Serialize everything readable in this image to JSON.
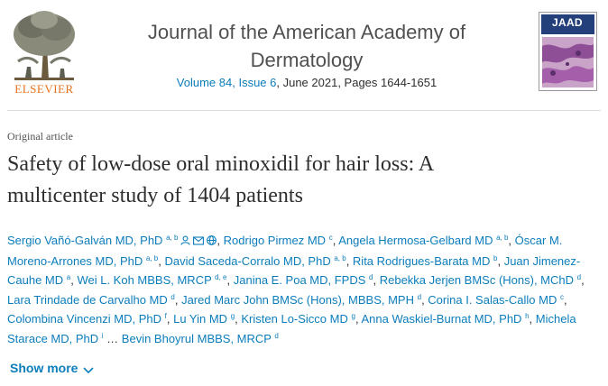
{
  "publisher": {
    "name": "ELSEVIER",
    "brand_color": "#e9711c"
  },
  "journal": {
    "title_line1": "Journal of the American Academy of",
    "title_line2": "Dermatology",
    "volume_link": "Volume 84, Issue 6",
    "issue_rest": ", June 2021, Pages 1644-1651"
  },
  "cover": {
    "title": "JAAD",
    "band_color": "#24407a"
  },
  "article": {
    "type": "Original article",
    "title_line1": "Safety of low-dose oral minoxidil for hair loss: A",
    "title_line2": "multicenter study of 1404 patients"
  },
  "authors": [
    {
      "name": "Sergio Vañó-Galván MD, PhD",
      "sup": "a, b",
      "icons": [
        "person-icon",
        "email-icon",
        "web-icon"
      ]
    },
    {
      "name": "Rodrigo Pirmez MD",
      "sup": "c"
    },
    {
      "name": "Angela Hermosa-Gelbard MD",
      "sup": "a, b"
    },
    {
      "name": "Óscar M. Moreno-Arrones MD, PhD",
      "sup": "a, b"
    },
    {
      "name": "David Saceda-Corralo MD, PhD",
      "sup": "a, b"
    },
    {
      "name": "Rita Rodrigues-Barata MD",
      "sup": "b"
    },
    {
      "name": "Juan Jimenez-Cauhe MD",
      "sup": "a"
    },
    {
      "name": "Wei L. Koh MBBS, MRCP",
      "sup": "d, e"
    },
    {
      "name": "Janina E. Poa MD, FPDS",
      "sup": "d"
    },
    {
      "name": "Rebekka Jerjen BMSc (Hons), MChD",
      "sup": "d"
    },
    {
      "name": "Lara Trindade de Carvalho MD",
      "sup": "d"
    },
    {
      "name": "Jared Marc John BMSc (Hons), MBBS, MPH",
      "sup": "d"
    },
    {
      "name": "Corina I. Salas-Callo MD",
      "sup": "c"
    },
    {
      "name": "Colombina Vincenzi MD, PhD",
      "sup": "f"
    },
    {
      "name": "Lu Yin MD",
      "sup": "g"
    },
    {
      "name": "Kristen Lo-Sicco MD",
      "sup": "g"
    },
    {
      "name": "Anna Waskiel-Burnat MD, PhD",
      "sup": "h"
    },
    {
      "name": "Michela Starace MD, PhD",
      "sup": "i"
    },
    {
      "name": "Bevin Bhoyrul MBBS, MRCP",
      "sup": "d"
    }
  ],
  "author_separator": ",",
  "ellipsis": "…",
  "show_more": {
    "label": "Show more",
    "icon": "chevron-down-icon"
  },
  "link_color": "#0c7dbb"
}
